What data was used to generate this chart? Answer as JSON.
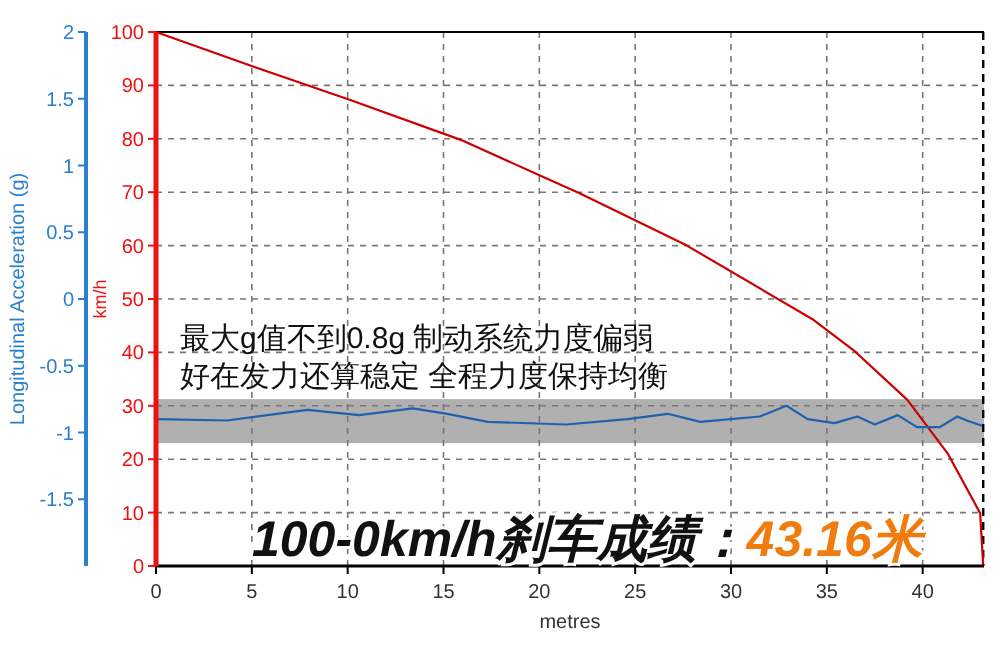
{
  "chart_data": {
    "type": "line",
    "xlabel": "metres",
    "ylabel": "km/h",
    "y2label": "Longitudinal Acceleration (g)",
    "xlim": [
      0,
      43.2
    ],
    "xticks": [
      0,
      5,
      10,
      15,
      20,
      25,
      30,
      35,
      40
    ],
    "ylim": [
      0,
      100
    ],
    "yticks": [
      0,
      10,
      20,
      30,
      40,
      50,
      60,
      70,
      80,
      90,
      100
    ],
    "y2lim": [
      -2,
      2
    ],
    "y2ticks": [
      -1.5,
      -1,
      -0.5,
      0,
      0.5,
      1,
      1.5,
      2
    ],
    "grid": true,
    "marker": "none",
    "line_style": "solid",
    "series": [
      {
        "color": "#cc0000",
        "x": [
          0,
          5.1,
          10.1,
          15.9,
          22.1,
          27.7,
          34.3,
          36.4,
          39.2,
          41.3,
          43.0,
          43.16
        ],
        "values": [
          100,
          93.5,
          87.3,
          79.8,
          69.8,
          60.0,
          46.1,
          40.4,
          31.1,
          21.1,
          9.9,
          0
        ]
      },
      {
        "color": "#2060b0",
        "axis": "y2",
        "x": [
          0,
          3.7,
          7.9,
          10.6,
          13.4,
          15.2,
          17.3,
          21.4,
          24.6,
          26.7,
          28.4,
          31.5,
          32.9,
          34.0,
          35.4,
          36.6,
          37.5,
          38.7,
          39.7,
          40.9,
          41.8,
          42.3,
          43.1
        ],
        "values": [
          -0.9,
          -0.91,
          -0.83,
          -0.87,
          -0.82,
          -0.86,
          -0.92,
          -0.94,
          -0.9,
          -0.86,
          -0.92,
          -0.88,
          -0.8,
          -0.9,
          -0.93,
          -0.88,
          -0.94,
          -0.87,
          -0.96,
          -0.96,
          -0.88,
          -0.91,
          -0.95
        ]
      }
    ],
    "bands": [
      {
        "axis": "y2",
        "from": -1.08,
        "to": -0.75,
        "color": "#b0b0b0"
      }
    ],
    "ref_lines": [
      {
        "axis": "x",
        "value": 43.16,
        "color": "#000000",
        "line_style": "dashed"
      }
    ],
    "annotations": [
      "最大g值不到0.8g 制动系统力度偏弱",
      "好在发力还算稳定 全程力度保持均衡",
      "100-0km/h刹车成绩：",
      "43.16米"
    ]
  }
}
